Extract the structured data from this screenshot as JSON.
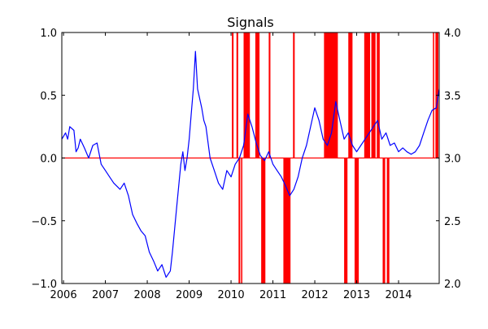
{
  "chart_data": {
    "type": "line",
    "title": "Signals",
    "xlabel": "",
    "ylabel": "",
    "y2label": "",
    "grid": false,
    "xlim": [
      2005.96,
      2014.97
    ],
    "ylim": [
      -1.0,
      1.0
    ],
    "y2lim": [
      2.0,
      4.0
    ],
    "x_ticks": [
      {
        "value": 2006,
        "label": "2006"
      },
      {
        "value": 2007,
        "label": "2007"
      },
      {
        "value": 2008,
        "label": "2008"
      },
      {
        "value": 2009,
        "label": "2009"
      },
      {
        "value": 2010,
        "label": "2010"
      },
      {
        "value": 2011,
        "label": "2011"
      },
      {
        "value": 2012,
        "label": "2012"
      },
      {
        "value": 2013,
        "label": "2013"
      },
      {
        "value": 2014,
        "label": "2014"
      }
    ],
    "y_ticks": [
      {
        "value": 1.0,
        "label": "1.0"
      },
      {
        "value": 0.5,
        "label": "0.5"
      },
      {
        "value": 0.0,
        "label": "0.0"
      },
      {
        "value": -0.5,
        "label": "−0.5"
      },
      {
        "value": -1.0,
        "label": "−1.0"
      }
    ],
    "y2_ticks": [
      {
        "value": 4.0,
        "label": "4.0"
      },
      {
        "value": 3.5,
        "label": "3.5"
      },
      {
        "value": 3.0,
        "label": "3.0"
      },
      {
        "value": 2.5,
        "label": "2.5"
      },
      {
        "value": 2.0,
        "label": "2.0"
      }
    ],
    "series": [
      {
        "color": "#0000ff",
        "axis": "left",
        "x": [
          2005.96,
          2006.05,
          2006.1,
          2006.15,
          2006.25,
          2006.3,
          2006.35,
          2006.4,
          2006.5,
          2006.6,
          2006.7,
          2006.8,
          2006.9,
          2007.0,
          2007.1,
          2007.2,
          2007.35,
          2007.45,
          2007.55,
          2007.65,
          2007.75,
          2007.85,
          2007.95,
          2008.05,
          2008.15,
          2008.25,
          2008.35,
          2008.45,
          2008.55,
          2008.6,
          2008.7,
          2008.8,
          2008.85,
          2008.9,
          2008.95,
          2009.0,
          2009.05,
          2009.1,
          2009.15,
          2009.2,
          2009.3,
          2009.35,
          2009.4,
          2009.5,
          2009.6,
          2009.7,
          2009.8,
          2009.9,
          2010.0,
          2010.1,
          2010.2,
          2010.3,
          2010.4,
          2010.5,
          2010.6,
          2010.7,
          2010.8,
          2010.9,
          2011.0,
          2011.1,
          2011.2,
          2011.3,
          2011.4,
          2011.5,
          2011.6,
          2011.7,
          2011.8,
          2011.9,
          2012.0,
          2012.1,
          2012.2,
          2012.3,
          2012.4,
          2012.5,
          2012.6,
          2012.7,
          2012.8,
          2012.9,
          2013.0,
          2013.1,
          2013.2,
          2013.3,
          2013.4,
          2013.5,
          2013.6,
          2013.7,
          2013.8,
          2013.9,
          2014.0,
          2014.1,
          2014.2,
          2014.3,
          2014.4,
          2014.5,
          2014.6,
          2014.7,
          2014.8,
          2014.9,
          2014.97
        ],
        "y": [
          0.15,
          0.2,
          0.15,
          0.25,
          0.22,
          0.05,
          0.08,
          0.15,
          0.08,
          0.0,
          0.1,
          0.12,
          -0.05,
          -0.1,
          -0.15,
          -0.2,
          -0.25,
          -0.2,
          -0.3,
          -0.45,
          -0.52,
          -0.58,
          -0.62,
          -0.75,
          -0.82,
          -0.9,
          -0.85,
          -0.95,
          -0.9,
          -0.75,
          -0.4,
          -0.05,
          0.05,
          -0.1,
          0.0,
          0.15,
          0.35,
          0.55,
          0.85,
          0.55,
          0.4,
          0.3,
          0.25,
          0.0,
          -0.1,
          -0.2,
          -0.25,
          -0.1,
          -0.15,
          -0.05,
          0.0,
          0.1,
          0.35,
          0.25,
          0.12,
          0.02,
          -0.02,
          0.05,
          -0.05,
          -0.1,
          -0.15,
          -0.22,
          -0.3,
          -0.25,
          -0.15,
          0.0,
          0.1,
          0.25,
          0.4,
          0.3,
          0.15,
          0.1,
          0.2,
          0.45,
          0.3,
          0.15,
          0.2,
          0.1,
          0.05,
          0.1,
          0.15,
          0.2,
          0.25,
          0.3,
          0.15,
          0.2,
          0.1,
          0.12,
          0.05,
          0.08,
          0.05,
          0.03,
          0.05,
          0.1,
          0.2,
          0.3,
          0.38,
          0.4,
          0.55
        ]
      },
      {
        "color": "#ff0000",
        "axis": "right",
        "type": "step-signal",
        "values": [
          3.0,
          4.0,
          2.0
        ],
        "bands": [
          {
            "x0": 2010.02,
            "x1": 2010.06,
            "level": 4.0
          },
          {
            "x0": 2010.13,
            "x1": 2010.17,
            "level": 4.0
          },
          {
            "x0": 2010.18,
            "x1": 2010.22,
            "level": 2.0
          },
          {
            "x0": 2010.24,
            "x1": 2010.27,
            "level": 2.0
          },
          {
            "x0": 2010.3,
            "x1": 2010.45,
            "level": 4.0
          },
          {
            "x0": 2010.58,
            "x1": 2010.68,
            "level": 4.0
          },
          {
            "x0": 2010.72,
            "x1": 2010.82,
            "level": 2.0
          },
          {
            "x0": 2010.9,
            "x1": 2010.94,
            "level": 4.0
          },
          {
            "x0": 2011.25,
            "x1": 2011.42,
            "level": 2.0
          },
          {
            "x0": 2011.48,
            "x1": 2011.52,
            "level": 4.0
          },
          {
            "x0": 2012.22,
            "x1": 2012.55,
            "level": 4.0
          },
          {
            "x0": 2012.7,
            "x1": 2012.78,
            "level": 2.0
          },
          {
            "x0": 2012.8,
            "x1": 2012.9,
            "level": 4.0
          },
          {
            "x0": 2012.95,
            "x1": 2013.05,
            "level": 2.0
          },
          {
            "x0": 2013.18,
            "x1": 2013.32,
            "level": 4.0
          },
          {
            "x0": 2013.35,
            "x1": 2013.45,
            "level": 4.0
          },
          {
            "x0": 2013.48,
            "x1": 2013.55,
            "level": 4.0
          },
          {
            "x0": 2013.62,
            "x1": 2013.68,
            "level": 2.0
          },
          {
            "x0": 2013.72,
            "x1": 2013.78,
            "level": 2.0
          },
          {
            "x0": 2014.82,
            "x1": 2014.85,
            "level": 4.0
          },
          {
            "x0": 2014.88,
            "x1": 2014.95,
            "level": 4.0
          }
        ]
      }
    ]
  }
}
